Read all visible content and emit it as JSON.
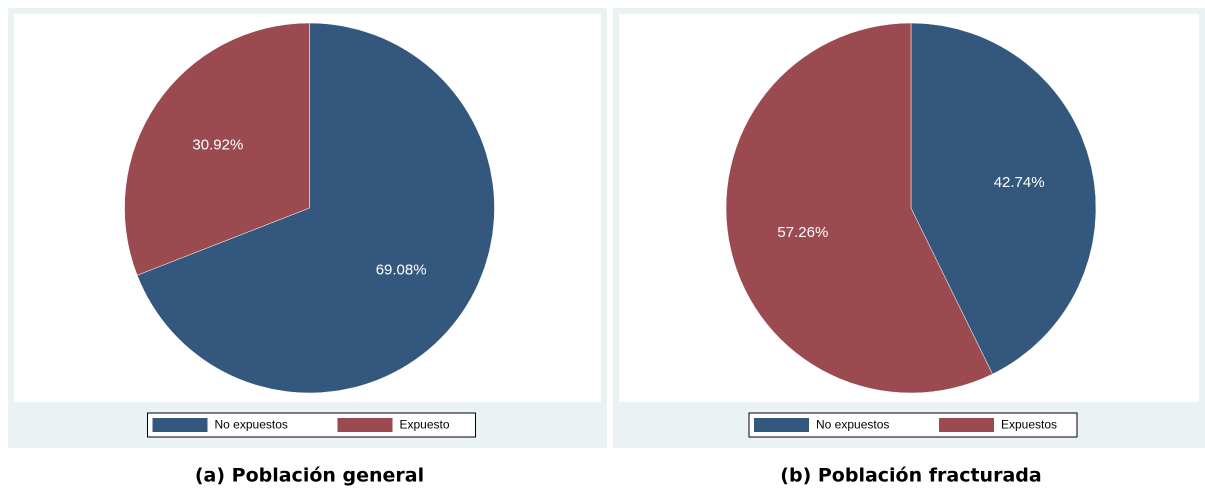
{
  "chart_data": [
    {
      "type": "pie",
      "caption": "(a) Población general",
      "categories": [
        "No expuestos",
        "Expuesto"
      ],
      "values": [
        69.08,
        30.92
      ],
      "value_labels": [
        "69.08%",
        "30.92%"
      ],
      "colors": [
        "#34587d",
        "#9b4a50"
      ]
    },
    {
      "type": "pie",
      "caption": "(b) Población fracturada",
      "categories": [
        "No expuestos",
        "Expuestos"
      ],
      "values": [
        42.74,
        57.26
      ],
      "value_labels": [
        "42.74%",
        "57.26%"
      ],
      "colors": [
        "#34587d",
        "#9b4a50"
      ]
    }
  ]
}
